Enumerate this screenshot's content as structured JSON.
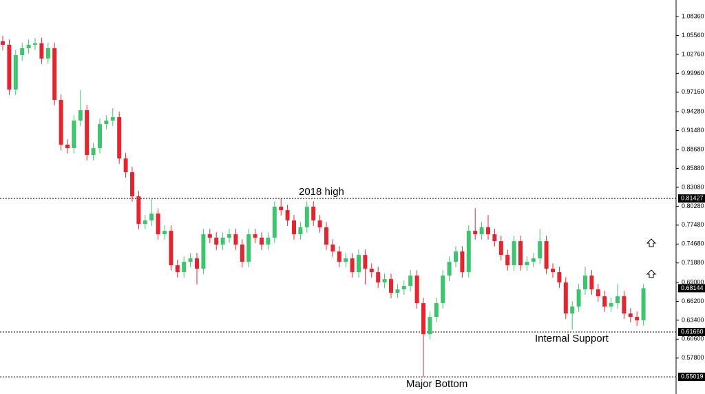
{
  "chart_data": {
    "type": "candlestick",
    "ylim": [
      0.5248,
      1.1081
    ],
    "yticks": [
      {
        "value": 1.0836,
        "label": "1.08360"
      },
      {
        "value": 1.0556,
        "label": "1.05560"
      },
      {
        "value": 1.0276,
        "label": "1.02760"
      },
      {
        "value": 0.9996,
        "label": "0.99960"
      },
      {
        "value": 0.9716,
        "label": "0.97160"
      },
      {
        "value": 0.9428,
        "label": "0.94280"
      },
      {
        "value": 0.9148,
        "label": "0.91480"
      },
      {
        "value": 0.8868,
        "label": "0.88680"
      },
      {
        "value": 0.8588,
        "label": "0.85880"
      },
      {
        "value": 0.8308,
        "label": "0.83080"
      },
      {
        "value": 0.8028,
        "label": "0.80280"
      },
      {
        "value": 0.7748,
        "label": "0.77480"
      },
      {
        "value": 0.7468,
        "label": "0.74680"
      },
      {
        "value": 0.7188,
        "label": "0.71880"
      },
      {
        "value": 0.69,
        "label": "0.69000"
      },
      {
        "value": 0.662,
        "label": "0.66200"
      },
      {
        "value": 0.634,
        "label": "0.63400"
      },
      {
        "value": 0.606,
        "label": "0.60600"
      },
      {
        "value": 0.578,
        "label": "0.57800"
      }
    ],
    "levels": [
      {
        "value": 0.81427,
        "label": "0.81427",
        "annotation": "2018 high"
      },
      {
        "value": 0.6166,
        "label": "0.61660",
        "annotation": "Internal Support"
      },
      {
        "value": 0.55019,
        "label": "0.55019",
        "annotation": "Major Bottom"
      }
    ],
    "last_price": {
      "value": 0.68144,
      "label": "0.68144"
    },
    "up_color": "#3ec46d",
    "down_color": "#e3262e",
    "open": [
      1.047,
      1.0418,
      0.9755,
      1.0265,
      1.0367,
      1.0418,
      1.044,
      1.0214,
      1.0367,
      0.9602,
      0.8939,
      0.8888,
      0.9296,
      0.9449,
      0.8786,
      0.8888,
      0.9245,
      0.9296,
      0.9347,
      0.8735,
      0.8531,
      0.8174,
      0.7766,
      0.7817,
      0.7919,
      0.7613,
      0.7664,
      0.7154,
      0.7052,
      0.7205,
      0.7256,
      0.7103,
      0.7613,
      0.7562,
      0.746,
      0.7562,
      0.7613,
      0.746,
      0.7205,
      0.7613,
      0.7562,
      0.746,
      0.7562,
      0.8021,
      0.797,
      0.7817,
      0.7613,
      0.7715,
      0.8021,
      0.7817,
      0.7715,
      0.746,
      0.7358,
      0.7205,
      0.7256,
      0.7052,
      0.7307,
      0.7103,
      0.7052,
      0.6899,
      0.695,
      0.6746,
      0.6797,
      0.6848,
      0.7001,
      0.6593,
      0.6134,
      0.6389,
      0.6593,
      0.7001,
      0.7205,
      0.7358,
      0.7052,
      0.7664,
      0.7613,
      0.7715,
      0.7613,
      0.7511,
      0.7307,
      0.7154,
      0.7511,
      0.7154,
      0.7205,
      0.7256,
      0.7511,
      0.7103,
      0.7052,
      0.6899,
      0.644,
      0.6542,
      0.6797,
      0.7001,
      0.6797,
      0.6695,
      0.6542,
      0.6593,
      0.6695,
      0.644,
      0.6389,
      0.6338
    ],
    "high": [
      1.055,
      1.0498,
      1.0345,
      1.0447,
      1.0498,
      1.052,
      1.052,
      1.0447,
      1.0447,
      0.9682,
      0.9019,
      0.9376,
      0.9749,
      0.9529,
      0.8968,
      0.9325,
      0.9376,
      0.948,
      0.9427,
      0.8815,
      0.8611,
      0.8254,
      0.7897,
      0.8143,
      0.7999,
      0.7744,
      0.7744,
      0.7234,
      0.7285,
      0.7336,
      0.7336,
      0.7693,
      0.7693,
      0.7642,
      0.7642,
      0.7693,
      0.7693,
      0.754,
      0.7693,
      0.7693,
      0.7642,
      0.7642,
      0.8101,
      0.8143,
      0.805,
      0.7897,
      0.7795,
      0.8101,
      0.8101,
      0.7897,
      0.7795,
      0.754,
      0.7438,
      0.7336,
      0.7336,
      0.7387,
      0.7387,
      0.7183,
      0.7132,
      0.703,
      0.703,
      0.6877,
      0.6928,
      0.7081,
      0.7081,
      0.6673,
      0.6469,
      0.6673,
      0.7081,
      0.7285,
      0.7438,
      0.7438,
      0.7744,
      0.7999,
      0.7795,
      0.7897,
      0.7693,
      0.7591,
      0.7387,
      0.7591,
      0.7591,
      0.7285,
      0.7336,
      0.7693,
      0.7591,
      0.7183,
      0.7132,
      0.6979,
      0.6622,
      0.6877,
      0.7132,
      0.7081,
      0.6877,
      0.6775,
      0.6673,
      0.6877,
      0.6775,
      0.652,
      0.6469,
      0.6877
    ],
    "low": [
      1.0338,
      0.9675,
      0.9675,
      1.0185,
      1.0287,
      1.0338,
      1.0134,
      1.0134,
      0.9522,
      0.8859,
      0.8808,
      0.8808,
      0.9216,
      0.8706,
      0.8706,
      0.8808,
      0.9165,
      0.9216,
      0.8655,
      0.8451,
      0.8094,
      0.7686,
      0.7686,
      0.7737,
      0.7533,
      0.7533,
      0.7074,
      0.6972,
      0.6972,
      0.7125,
      0.687,
      0.7023,
      0.7482,
      0.738,
      0.738,
      0.7482,
      0.738,
      0.7125,
      0.7125,
      0.7482,
      0.738,
      0.738,
      0.7482,
      0.789,
      0.7737,
      0.7533,
      0.7533,
      0.7635,
      0.7737,
      0.7635,
      0.738,
      0.7278,
      0.7125,
      0.7125,
      0.6972,
      0.6972,
      0.687,
      0.6972,
      0.6819,
      0.6819,
      0.6666,
      0.6666,
      0.6717,
      0.6768,
      0.6513,
      0.5502,
      0.6054,
      0.6309,
      0.6513,
      0.6921,
      0.7125,
      0.6972,
      0.6972,
      0.7533,
      0.7533,
      0.7533,
      0.7431,
      0.7227,
      0.7074,
      0.7074,
      0.7074,
      0.7074,
      0.7125,
      0.7176,
      0.7023,
      0.6972,
      0.6819,
      0.636,
      0.62,
      0.6462,
      0.6717,
      0.6717,
      0.6615,
      0.6462,
      0.6462,
      0.6513,
      0.636,
      0.6309,
      0.6258,
      0.6258
    ],
    "close": [
      1.0418,
      0.9755,
      1.0265,
      1.0367,
      1.0418,
      1.044,
      1.0214,
      1.0367,
      0.9602,
      0.8939,
      0.8888,
      0.9296,
      0.9449,
      0.8786,
      0.8888,
      0.9245,
      0.9296,
      0.9347,
      0.8735,
      0.8531,
      0.8174,
      0.7766,
      0.7817,
      0.7919,
      0.7613,
      0.7664,
      0.7154,
      0.7052,
      0.7205,
      0.7256,
      0.7103,
      0.7613,
      0.7562,
      0.746,
      0.7562,
      0.7613,
      0.746,
      0.7205,
      0.7613,
      0.7562,
      0.746,
      0.7562,
      0.8021,
      0.797,
      0.7817,
      0.7613,
      0.7715,
      0.8021,
      0.7817,
      0.7715,
      0.746,
      0.7358,
      0.7205,
      0.7256,
      0.7052,
      0.7307,
      0.7103,
      0.7052,
      0.6899,
      0.695,
      0.6746,
      0.6797,
      0.6848,
      0.7001,
      0.6593,
      0.6134,
      0.6389,
      0.6593,
      0.7001,
      0.7205,
      0.7358,
      0.7052,
      0.7664,
      0.7613,
      0.7715,
      0.7613,
      0.7511,
      0.7307,
      0.7154,
      0.7511,
      0.7154,
      0.7205,
      0.7256,
      0.7511,
      0.7103,
      0.7052,
      0.6899,
      0.644,
      0.6542,
      0.6797,
      0.7001,
      0.6797,
      0.6695,
      0.6542,
      0.6593,
      0.6695,
      0.644,
      0.6389,
      0.6338,
      0.6814
    ]
  }
}
